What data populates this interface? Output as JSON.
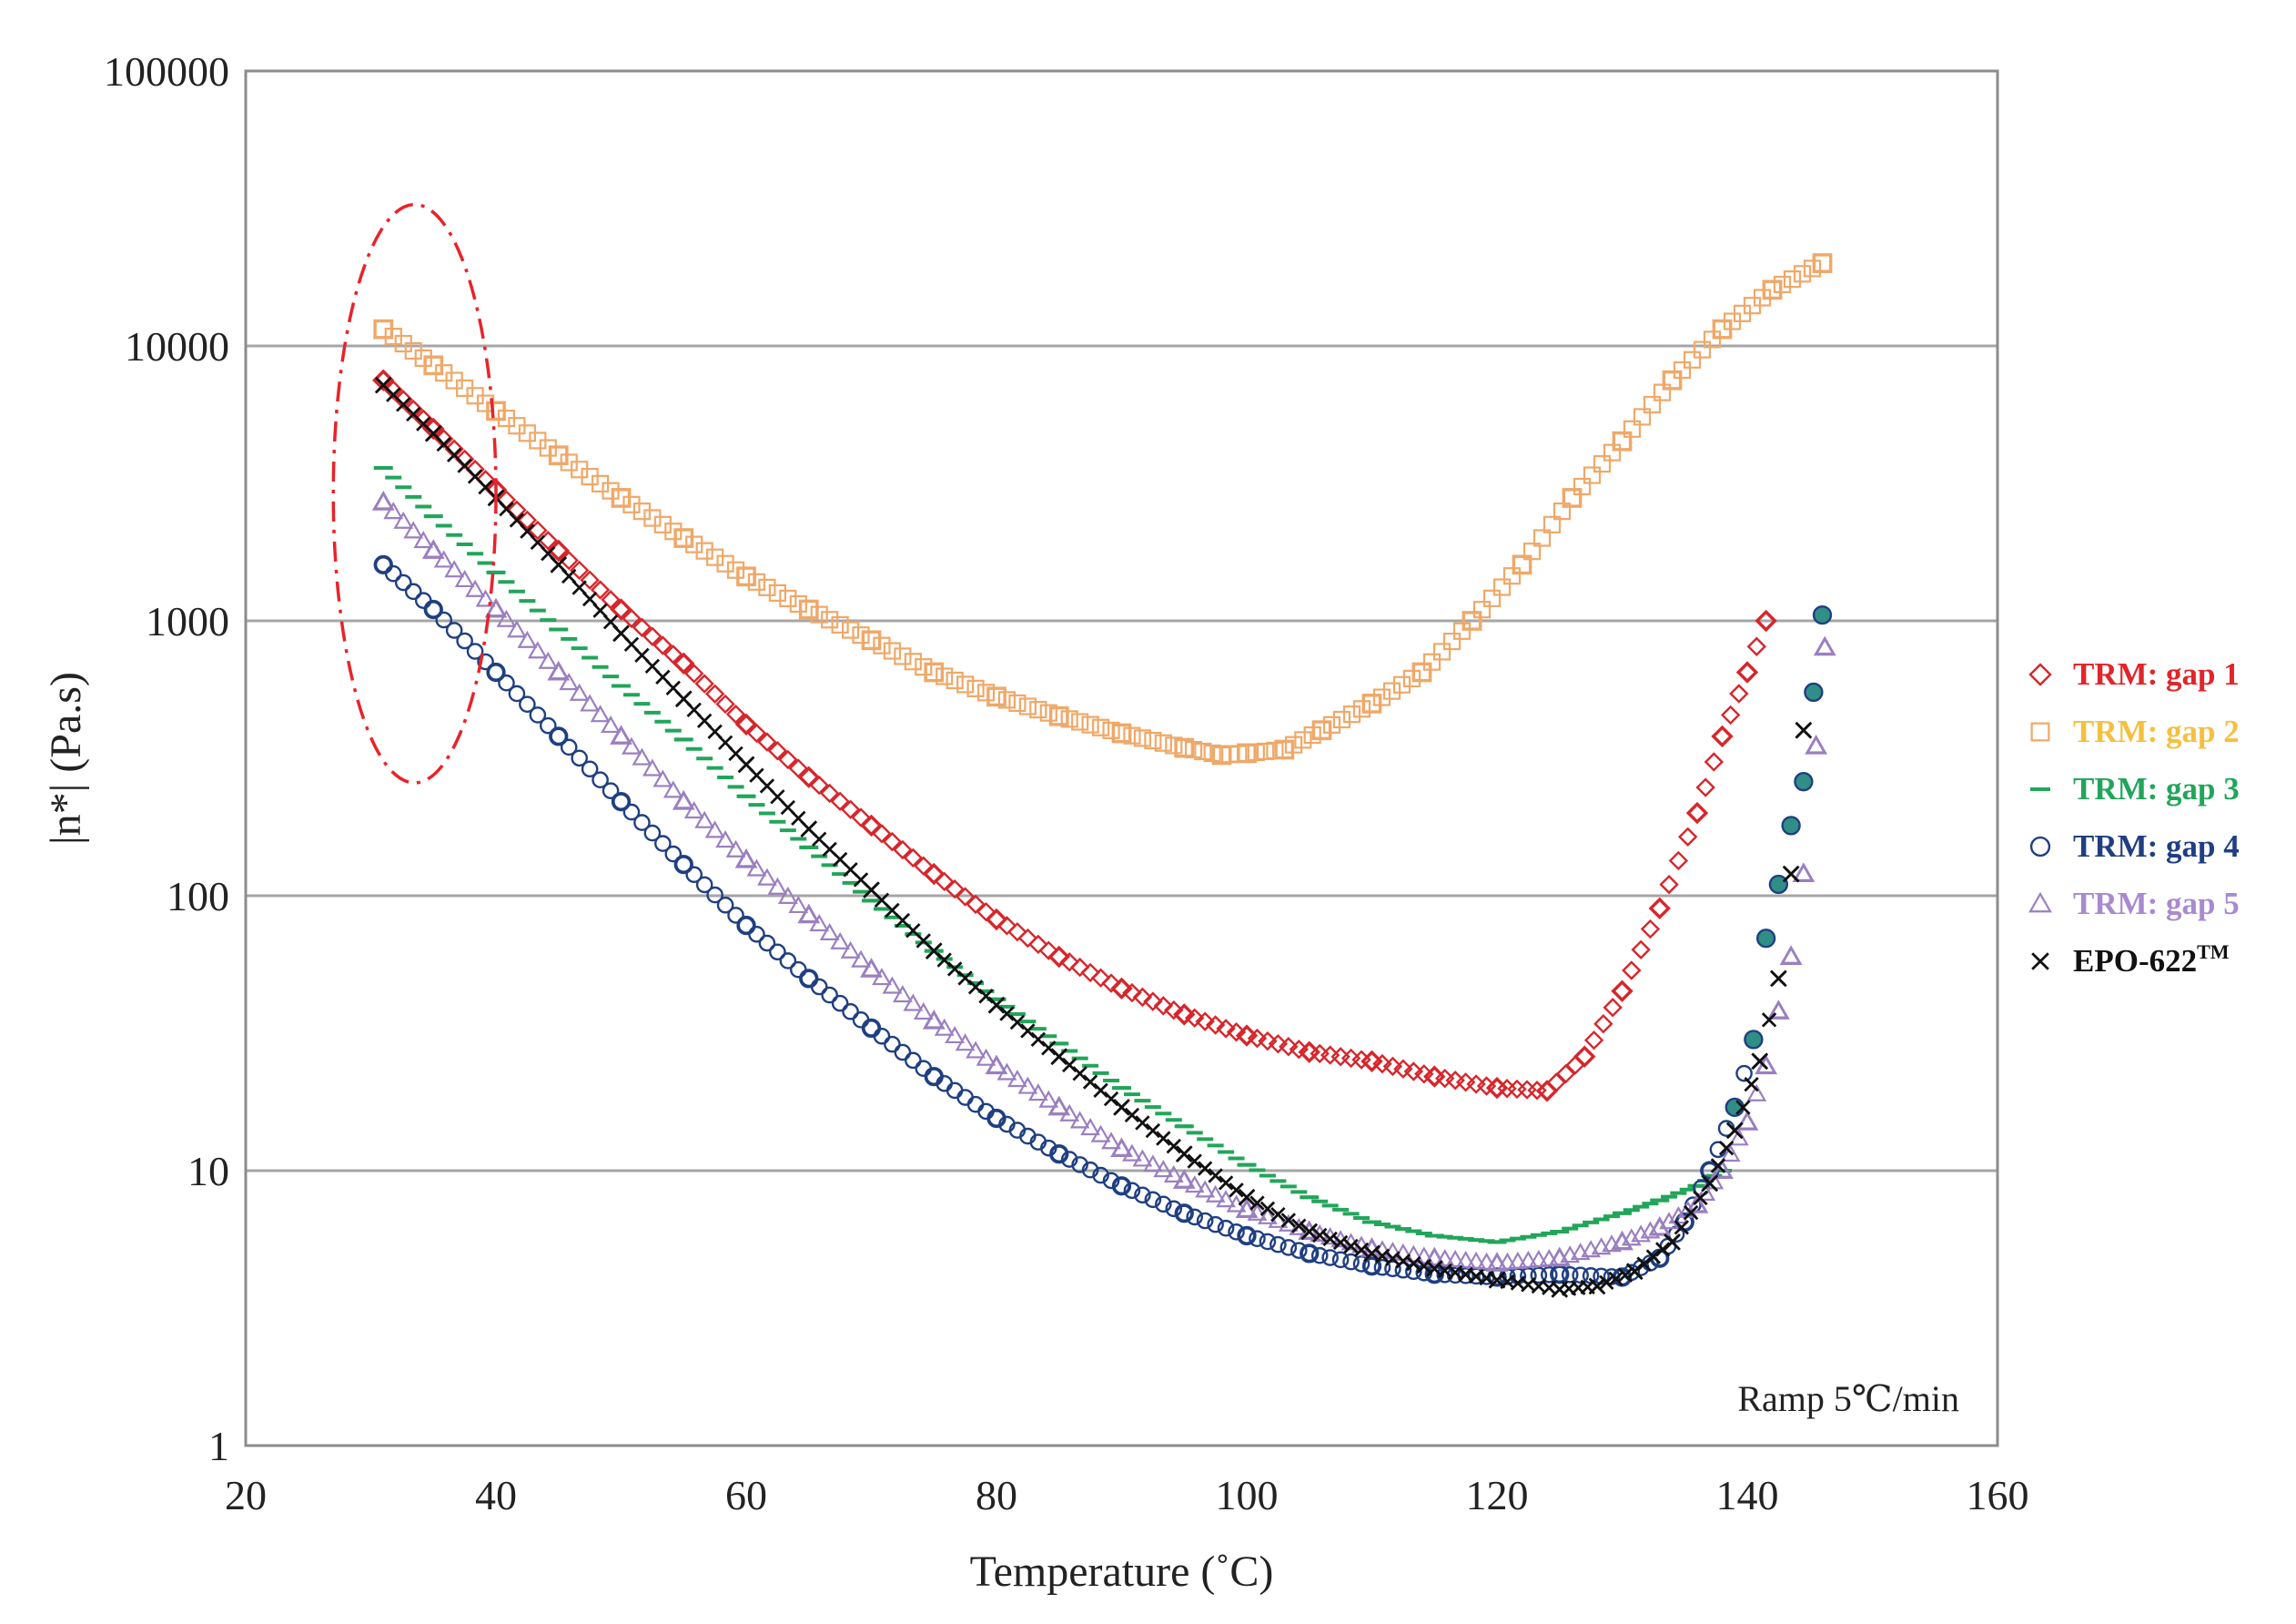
{
  "chart_data": {
    "type": "scatter",
    "title": "",
    "xlabel": "Temperature (˚C)",
    "ylabel": "|n*| (Pa.s)",
    "xlim": [
      20,
      160
    ],
    "ylim": [
      1,
      100000
    ],
    "yscale": "log",
    "grid": "horizontal",
    "xticks": [
      "20",
      "40",
      "60",
      "80",
      "100",
      "120",
      "140",
      "160"
    ],
    "yticks": [
      "1",
      "10",
      "100",
      "1000",
      "10000",
      "100000"
    ],
    "annotation": "Ramp 5℃/min",
    "highlight": "dash-dot ellipse around initial viscosity values (30–38 ˚C)",
    "legend_position": "right",
    "series": [
      {
        "name": "TRM: gap 1",
        "legend_label": "TRM: gap 1",
        "marker": "diamond",
        "color": "#d7262b",
        "text_color": "#e0262b",
        "x": [
          31,
          35,
          40,
          45,
          50,
          55,
          60,
          65,
          70,
          75,
          80,
          85,
          90,
          95,
          100,
          105,
          110,
          115,
          120,
          124,
          127,
          130,
          133,
          136,
          138,
          140,
          141.5
        ],
        "y": [
          7500,
          5000,
          3000,
          1800,
          1100,
          700,
          420,
          270,
          180,
          120,
          82,
          60,
          46,
          37,
          31,
          27,
          25,
          22,
          20,
          19.5,
          26,
          45,
          90,
          200,
          380,
          650,
          1000
        ]
      },
      {
        "name": "TRM: gap 2",
        "legend_label": "TRM: gap 2",
        "marker": "square",
        "color": "#f0a868",
        "text_color": "#f5c040",
        "x": [
          31,
          35,
          40,
          45,
          50,
          55,
          60,
          65,
          70,
          75,
          80,
          85,
          90,
          95,
          98,
          100,
          103,
          106,
          110,
          114,
          118,
          122,
          126,
          130,
          134,
          138,
          142,
          146
        ],
        "y": [
          11500,
          8500,
          5800,
          4000,
          2800,
          2000,
          1450,
          1100,
          850,
          650,
          530,
          450,
          390,
          345,
          325,
          330,
          340,
          400,
          500,
          650,
          1000,
          1600,
          2800,
          4500,
          7500,
          11500,
          16000,
          20000
        ]
      },
      {
        "name": "TRM: gap 3",
        "legend_label": "TRM: gap 3",
        "marker": "dash",
        "color": "#22a55a",
        "text_color": "#22a55a",
        "x": [
          31,
          35,
          40,
          45,
          50,
          55,
          60,
          65,
          70,
          75,
          80,
          85,
          90,
          95,
          100,
          105,
          110,
          115,
          120,
          125,
          130,
          133,
          136,
          138
        ],
        "y": [
          3600,
          2400,
          1500,
          930,
          580,
          370,
          230,
          150,
          96,
          63,
          42,
          29,
          20,
          14.5,
          10.5,
          8,
          6.5,
          5.8,
          5.5,
          6,
          7,
          7.8,
          8.8,
          10
        ]
      },
      {
        "name": "TRM: gap 4",
        "legend_label": "TRM: gap 4",
        "marker": "circle",
        "color": "#1f3f82",
        "text_color": "#1f3f82",
        "x": [
          31,
          35,
          40,
          45,
          50,
          55,
          60,
          65,
          70,
          75,
          80,
          85,
          90,
          95,
          100,
          105,
          110,
          115,
          120,
          125,
          130,
          133,
          135,
          137,
          139,
          140.5,
          141.5,
          142.5,
          143.5,
          144.5,
          145.3,
          146
        ],
        "y": [
          1600,
          1100,
          650,
          380,
          220,
          130,
          78,
          50,
          33,
          22,
          15.5,
          11.5,
          8.8,
          7,
          5.8,
          5,
          4.5,
          4.2,
          4.1,
          4.2,
          4.1,
          4.8,
          6.5,
          10,
          17,
          30,
          70,
          110,
          180,
          260,
          550,
          1050
        ]
      },
      {
        "name": "TRM: gap 5",
        "legend_label": "TRM: gap 5",
        "marker": "triangle",
        "color": "#9b7fc0",
        "text_color": "#a88ad0",
        "x": [
          31,
          35,
          40,
          45,
          50,
          55,
          60,
          65,
          70,
          75,
          80,
          85,
          90,
          95,
          100,
          105,
          110,
          115,
          120,
          125,
          130,
          133,
          136,
          138,
          140,
          141.5,
          142.5,
          143.5,
          144.5,
          145.5,
          146.2
        ],
        "y": [
          2700,
          1800,
          1100,
          650,
          380,
          220,
          135,
          85,
          54,
          35,
          24,
          17,
          12,
          9.2,
          7.2,
          6,
          5.2,
          4.8,
          4.6,
          4.8,
          5.5,
          6.2,
          7.5,
          10,
          15,
          24,
          38,
          60,
          120,
          350,
          800
        ]
      },
      {
        "name": "EPO-622™",
        "legend_label": "EPO-622",
        "legend_sup": "TM",
        "marker": "x",
        "color": "#111111",
        "text_color": "#111111",
        "x": [
          31,
          35,
          40,
          45,
          50,
          55,
          60,
          65,
          70,
          75,
          80,
          85,
          90,
          95,
          100,
          105,
          110,
          115,
          120,
          125,
          128,
          131,
          134,
          137,
          139,
          141,
          142.5,
          143.5,
          144.5
        ],
        "y": [
          7200,
          4800,
          2800,
          1600,
          900,
          520,
          300,
          175,
          105,
          63,
          40,
          26,
          17,
          11.5,
          8,
          6,
          5,
          4.4,
          4,
          3.7,
          3.8,
          4.3,
          5.5,
          9,
          14,
          25,
          50,
          120,
          400
        ]
      }
    ]
  }
}
